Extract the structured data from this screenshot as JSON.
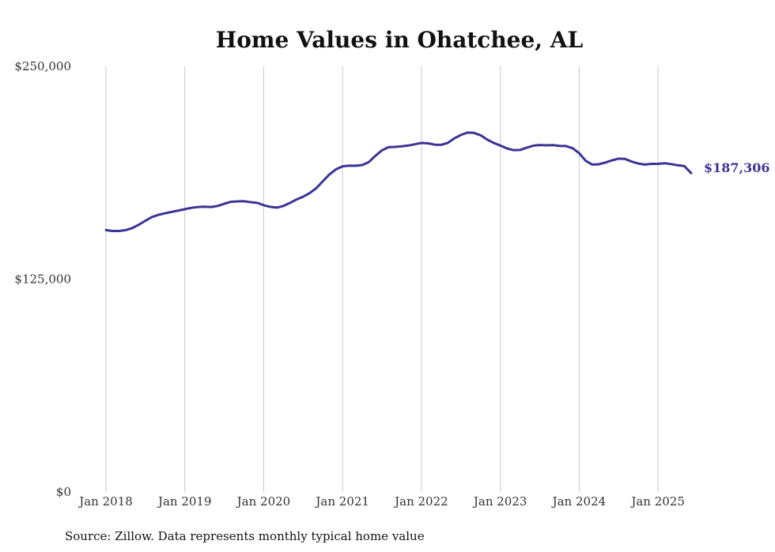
{
  "chart_data": {
    "type": "line",
    "title": "Home Values in Ohatchee, AL",
    "source": "Source: Zillow. Data represents monthly typical home value",
    "ylim": [
      0,
      250000
    ],
    "y_ticks": [
      {
        "value": 0,
        "label": "$0"
      },
      {
        "value": 125000,
        "label": "$125,000"
      },
      {
        "value": 250000,
        "label": "$250,000"
      }
    ],
    "x_ticks": [
      {
        "value": 2018,
        "label": "Jan 2018"
      },
      {
        "value": 2019,
        "label": "Jan 2019"
      },
      {
        "value": 2020,
        "label": "Jan 2020"
      },
      {
        "value": 2021,
        "label": "Jan 2021"
      },
      {
        "value": 2022,
        "label": "Jan 2022"
      },
      {
        "value": 2023,
        "label": "Jan 2023"
      },
      {
        "value": 2024,
        "label": "Jan 2024"
      },
      {
        "value": 2025,
        "label": "Jan 2025"
      }
    ],
    "xlim": [
      2018,
      2025.42
    ],
    "grid": "vertical",
    "line_color": "#3a3494",
    "series": [
      {
        "name": "Typical home value",
        "x": [
          2018.0,
          2018.083,
          2018.167,
          2018.25,
          2018.333,
          2018.417,
          2018.5,
          2018.583,
          2018.667,
          2018.75,
          2018.833,
          2018.917,
          2019.0,
          2019.083,
          2019.167,
          2019.25,
          2019.333,
          2019.417,
          2019.5,
          2019.583,
          2019.667,
          2019.75,
          2019.833,
          2019.917,
          2020.0,
          2020.083,
          2020.167,
          2020.25,
          2020.333,
          2020.417,
          2020.5,
          2020.583,
          2020.667,
          2020.75,
          2020.833,
          2020.917,
          2021.0,
          2021.083,
          2021.167,
          2021.25,
          2021.333,
          2021.417,
          2021.5,
          2021.583,
          2021.667,
          2021.75,
          2021.833,
          2021.917,
          2022.0,
          2022.083,
          2022.167,
          2022.25,
          2022.333,
          2022.417,
          2022.5,
          2022.583,
          2022.667,
          2022.75,
          2022.833,
          2022.917,
          2023.0,
          2023.083,
          2023.167,
          2023.25,
          2023.333,
          2023.417,
          2023.5,
          2023.583,
          2023.667,
          2023.75,
          2023.833,
          2023.917,
          2024.0,
          2024.083,
          2024.167,
          2024.25,
          2024.333,
          2024.417,
          2024.5,
          2024.583,
          2024.667,
          2024.75,
          2024.833,
          2024.917,
          2025.0,
          2025.083,
          2025.167,
          2025.25,
          2025.333,
          2025.42
        ],
        "values": [
          153800,
          153300,
          153300,
          153800,
          155000,
          157000,
          159300,
          161500,
          162800,
          163700,
          164500,
          165300,
          166100,
          166900,
          167400,
          167600,
          167400,
          168000,
          169300,
          170400,
          170700,
          170800,
          170200,
          169800,
          168400,
          167500,
          167000,
          168000,
          169800,
          171800,
          173400,
          175500,
          178500,
          182500,
          186500,
          189500,
          191300,
          191700,
          191600,
          192000,
          193800,
          197500,
          200700,
          202500,
          202700,
          203000,
          203500,
          204200,
          205000,
          204800,
          204000,
          203900,
          205000,
          207700,
          209700,
          211100,
          210900,
          209500,
          207000,
          205000,
          203500,
          201800,
          200800,
          200900,
          202200,
          203400,
          203800,
          203600,
          203700,
          203300,
          203200,
          201900,
          199000,
          194500,
          192300,
          192500,
          193500,
          194800,
          195800,
          195600,
          194000,
          192900,
          192300,
          192700,
          192700,
          193100,
          192600,
          191900,
          191400,
          187306
        ]
      }
    ],
    "end_label": "$187,306"
  }
}
